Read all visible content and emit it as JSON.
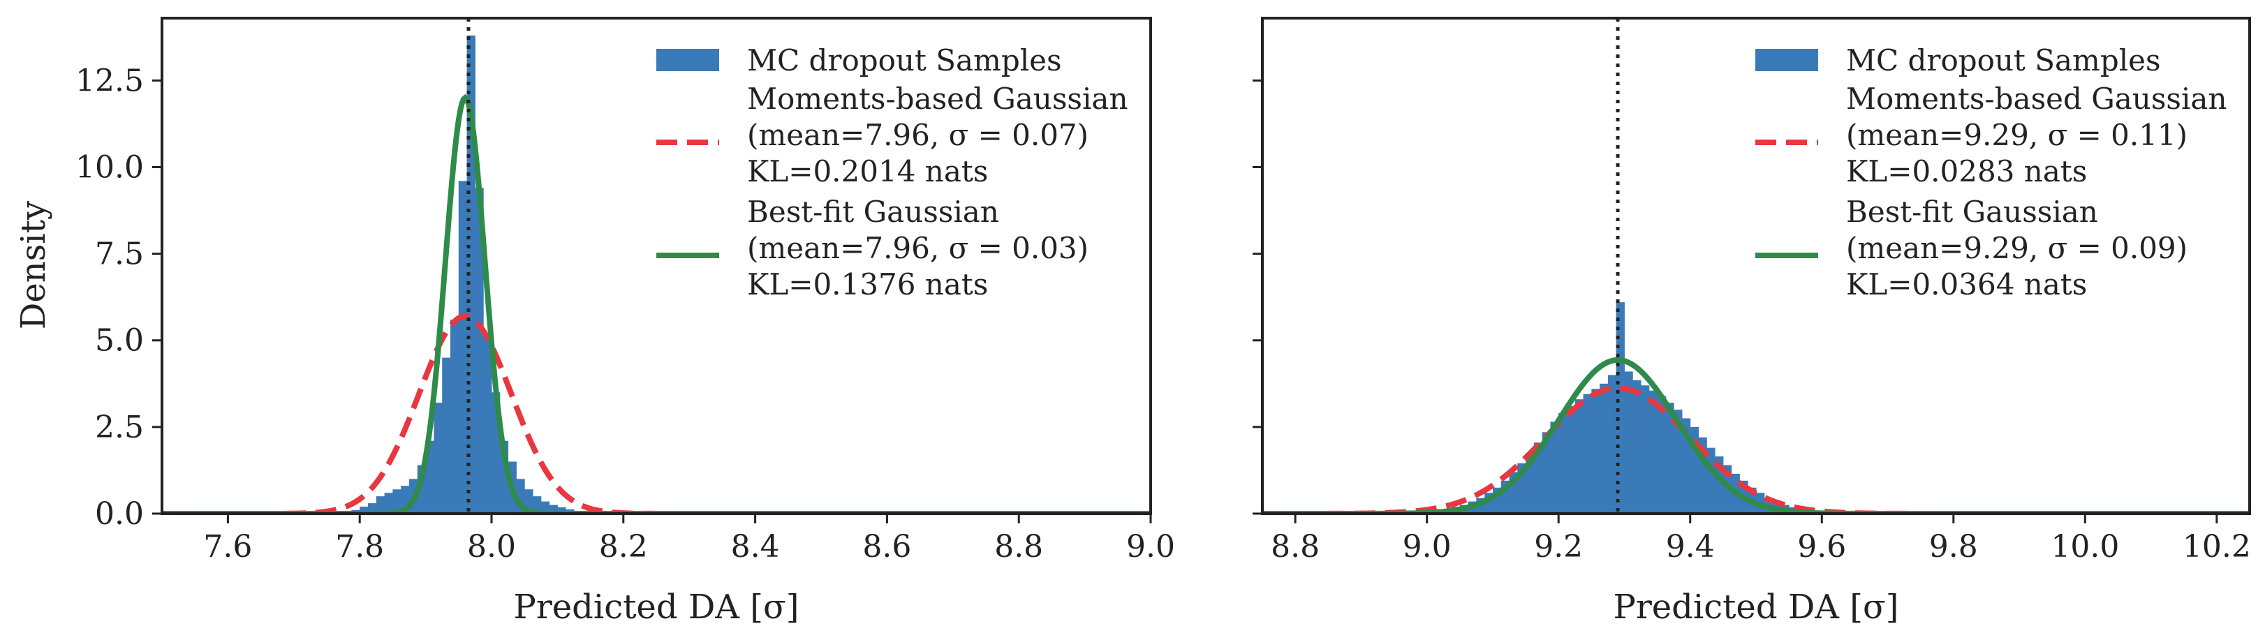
{
  "colors": {
    "hist": "#3a7ab8",
    "moments": "#e8373f",
    "bestfit": "#2e8b4a",
    "vline": "#222222",
    "axes": "#222222"
  },
  "chart_data": [
    {
      "type": "bar",
      "xlabel": "Predicted DA [σ]",
      "ylabel": "Density",
      "xlim": [
        7.5,
        9.0
      ],
      "ylim": [
        0,
        14.3
      ],
      "xticks": [
        "7.6",
        "7.8",
        "8.0",
        "8.2",
        "8.4",
        "8.6",
        "8.8",
        "9.0"
      ],
      "yticks": [
        "0.0",
        "2.5",
        "5.0",
        "7.5",
        "10.0",
        "12.5"
      ],
      "reference_line_x": 7.965,
      "legend_position": "top-right",
      "series": [
        {
          "name": "MC dropout Samples",
          "kind": "histogram",
          "bin_width": 0.0125,
          "bins": [
            [
              7.7875,
              0.1
            ],
            [
              7.8,
              0.2
            ],
            [
              7.8125,
              0.3
            ],
            [
              7.825,
              0.5
            ],
            [
              7.8375,
              0.6
            ],
            [
              7.85,
              0.7
            ],
            [
              7.8625,
              0.8
            ],
            [
              7.875,
              1.0
            ],
            [
              7.8875,
              1.4
            ],
            [
              7.9,
              2.1
            ],
            [
              7.9125,
              3.2
            ],
            [
              7.925,
              4.5
            ],
            [
              7.9375,
              5.6
            ],
            [
              7.95,
              9.6
            ],
            [
              7.9625,
              13.8
            ],
            [
              7.975,
              9.4
            ],
            [
              7.9875,
              5.2
            ],
            [
              8.0,
              3.5
            ],
            [
              8.0125,
              2.1
            ],
            [
              8.025,
              1.5
            ],
            [
              8.0375,
              1.0
            ],
            [
              8.05,
              0.7
            ],
            [
              8.0625,
              0.5
            ],
            [
              8.075,
              0.35
            ],
            [
              8.0875,
              0.25
            ],
            [
              8.1,
              0.18
            ],
            [
              8.1125,
              0.12
            ],
            [
              8.125,
              0.08
            ]
          ]
        },
        {
          "name": "Moments-based Gaussian",
          "kind": "gaussian",
          "mean": 7.96,
          "sigma": 0.07,
          "legend_lines": [
            "Moments-based Gaussian",
            "(mean=7.96, σ = 0.07)",
            "KL=0.2014 nats"
          ]
        },
        {
          "name": "Best-fit Gaussian",
          "kind": "gaussian",
          "mean": 7.96,
          "sigma": 0.03,
          "peak": 12.0,
          "legend_lines": [
            "Best-fit Gaussian",
            "(mean=7.96, σ = 0.03)",
            "KL=0.1376 nats"
          ]
        }
      ]
    },
    {
      "type": "bar",
      "xlabel": "Predicted DA [σ]",
      "ylabel": "",
      "xlim": [
        8.75,
        10.25
      ],
      "ylim": [
        0,
        14.3
      ],
      "xticks": [
        "8.8",
        "9.0",
        "9.2",
        "9.4",
        "9.6",
        "9.8",
        "10.0",
        "10.2"
      ],
      "yticks": [],
      "reference_line_x": 9.29,
      "legend_position": "top-right",
      "series": [
        {
          "name": "MC dropout Samples",
          "kind": "histogram",
          "bin_width": 0.0125,
          "bins": [
            [
              9.0375,
              0.2
            ],
            [
              9.05,
              0.25
            ],
            [
              9.0625,
              0.35
            ],
            [
              9.075,
              0.45
            ],
            [
              9.0875,
              0.6
            ],
            [
              9.1,
              0.75
            ],
            [
              9.1125,
              0.95
            ],
            [
              9.125,
              1.2
            ],
            [
              9.1375,
              1.45
            ],
            [
              9.15,
              1.75
            ],
            [
              9.1625,
              2.05
            ],
            [
              9.175,
              2.35
            ],
            [
              9.1875,
              2.65
            ],
            [
              9.2,
              2.9
            ],
            [
              9.2125,
              3.1
            ],
            [
              9.225,
              3.3
            ],
            [
              9.2375,
              3.45
            ],
            [
              9.25,
              3.6
            ],
            [
              9.2625,
              3.75
            ],
            [
              9.275,
              4.0
            ],
            [
              9.2875,
              6.1
            ],
            [
              9.3,
              4.1
            ],
            [
              9.3125,
              3.85
            ],
            [
              9.325,
              3.7
            ],
            [
              9.3375,
              3.55
            ],
            [
              9.35,
              3.4
            ],
            [
              9.3625,
              3.2
            ],
            [
              9.375,
              3.0
            ],
            [
              9.3875,
              2.75
            ],
            [
              9.4,
              2.5
            ],
            [
              9.4125,
              2.2
            ],
            [
              9.425,
              1.9
            ],
            [
              9.4375,
              1.65
            ],
            [
              9.45,
              1.4
            ],
            [
              9.4625,
              1.15
            ],
            [
              9.475,
              0.95
            ],
            [
              9.4875,
              0.75
            ],
            [
              9.5,
              0.6
            ],
            [
              9.5125,
              0.45
            ],
            [
              9.525,
              0.35
            ],
            [
              9.5375,
              0.25
            ],
            [
              9.55,
              0.18
            ],
            [
              9.5625,
              0.12
            ]
          ]
        },
        {
          "name": "Moments-based Gaussian",
          "kind": "gaussian",
          "mean": 9.29,
          "sigma": 0.11,
          "legend_lines": [
            "Moments-based Gaussian",
            "(mean=9.29, σ = 0.11)",
            "KL=0.0283 nats"
          ]
        },
        {
          "name": "Best-fit Gaussian",
          "kind": "gaussian",
          "mean": 9.29,
          "sigma": 0.09,
          "legend_lines": [
            "Best-fit Gaussian",
            "(mean=9.29, σ = 0.09)",
            "KL=0.0364 nats"
          ]
        }
      ]
    }
  ]
}
